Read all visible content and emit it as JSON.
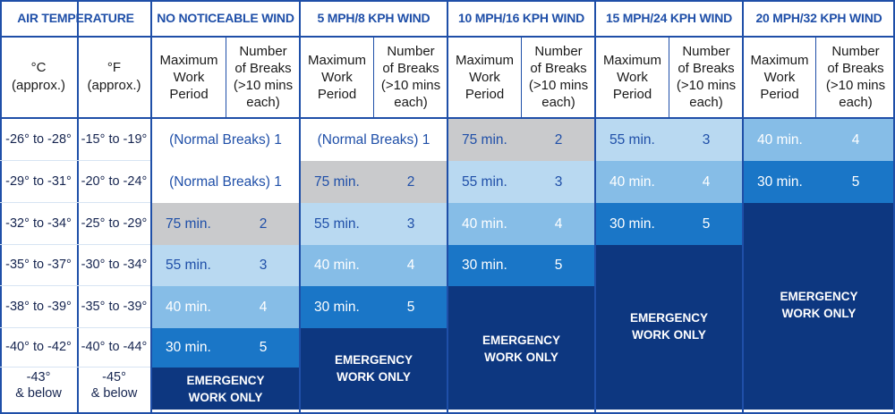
{
  "header": {
    "air_temperature": "AIR TEMPERATURE",
    "celsius": "°C\n(approx.)",
    "fahrenheit": "°F\n(approx.)",
    "max_work_period": "Maximum\nWork\nPeriod",
    "number_of_breaks": "Number\nof Breaks\n(>10 mins\neach)"
  },
  "wind_columns": [
    "NO NOTICEABLE WIND",
    "5 MPH/8 KPH WIND",
    "10 MPH/16 KPH WIND",
    "15 MPH/24 KPH WIND",
    "20 MPH/32 KPH WIND"
  ],
  "rows": [
    {
      "c": "-26° to -28°",
      "f": "-15° to -19°"
    },
    {
      "c": "-29° to -31°",
      "f": "-20° to -24°"
    },
    {
      "c": "-32° to -34°",
      "f": "-25° to -29°"
    },
    {
      "c": "-35° to -37°",
      "f": "-30° to -34°"
    },
    {
      "c": "-38° to -39°",
      "f": "-35° to -39°"
    },
    {
      "c": "-40° to -42°",
      "f": "-40° to -44°"
    },
    {
      "c": "-43°\n& below",
      "f": "-45°\n& below"
    }
  ],
  "entries": [
    {
      "w": 0,
      "r": 0,
      "type": "normal",
      "text": "(Normal Breaks) 1"
    },
    {
      "w": 0,
      "r": 1,
      "type": "normal",
      "text": "(Normal Breaks) 1"
    },
    {
      "w": 0,
      "r": 2,
      "type": "value",
      "period": "75 min.",
      "breaks": "2"
    },
    {
      "w": 0,
      "r": 3,
      "type": "value",
      "period": "55 min.",
      "breaks": "3"
    },
    {
      "w": 0,
      "r": 4,
      "type": "value",
      "period": "40 min.",
      "breaks": "4"
    },
    {
      "w": 0,
      "r": 5,
      "type": "value",
      "period": "30 min.",
      "breaks": "5"
    },
    {
      "w": 1,
      "r": 0,
      "type": "normal",
      "text": "(Normal Breaks) 1"
    },
    {
      "w": 1,
      "r": 1,
      "type": "value",
      "period": "75 min.",
      "breaks": "2"
    },
    {
      "w": 1,
      "r": 2,
      "type": "value",
      "period": "55 min.",
      "breaks": "3"
    },
    {
      "w": 1,
      "r": 3,
      "type": "value",
      "period": "40 min.",
      "breaks": "4"
    },
    {
      "w": 1,
      "r": 4,
      "type": "value",
      "period": "30 min.",
      "breaks": "5"
    },
    {
      "w": 2,
      "r": 0,
      "type": "value",
      "period": "75 min.",
      "breaks": "2"
    },
    {
      "w": 2,
      "r": 1,
      "type": "value",
      "period": "55 min.",
      "breaks": "3"
    },
    {
      "w": 2,
      "r": 2,
      "type": "value",
      "period": "40 min.",
      "breaks": "4"
    },
    {
      "w": 2,
      "r": 3,
      "type": "value",
      "period": "30 min.",
      "breaks": "5"
    },
    {
      "w": 3,
      "r": 0,
      "type": "value",
      "period": "55 min.",
      "breaks": "3"
    },
    {
      "w": 3,
      "r": 1,
      "type": "value",
      "period": "40 min.",
      "breaks": "4"
    },
    {
      "w": 3,
      "r": 2,
      "type": "value",
      "period": "30 min.",
      "breaks": "5"
    },
    {
      "w": 4,
      "r": 0,
      "type": "value",
      "period": "40 min.",
      "breaks": "4"
    },
    {
      "w": 4,
      "r": 1,
      "type": "value",
      "period": "30 min.",
      "breaks": "5"
    }
  ],
  "emergency_text": "EMERGENCY\nWORK ONLY",
  "emergency_from_row": [
    6,
    5,
    4,
    3,
    2
  ],
  "colors": {
    "accent_blue": "#1f4fa8",
    "normal_bg": "#ffffff",
    "level_2_bg": "#c9cacc",
    "level_3_bg": "#b9d9f1",
    "level_4_bg": "#86bde7",
    "level_5_bg": "#1a76c7",
    "emergency_bg": "#0d3780",
    "text_dark": "#15244f",
    "text_on_light": "#1f4fa8",
    "text_on_dark": "#ffffff"
  }
}
